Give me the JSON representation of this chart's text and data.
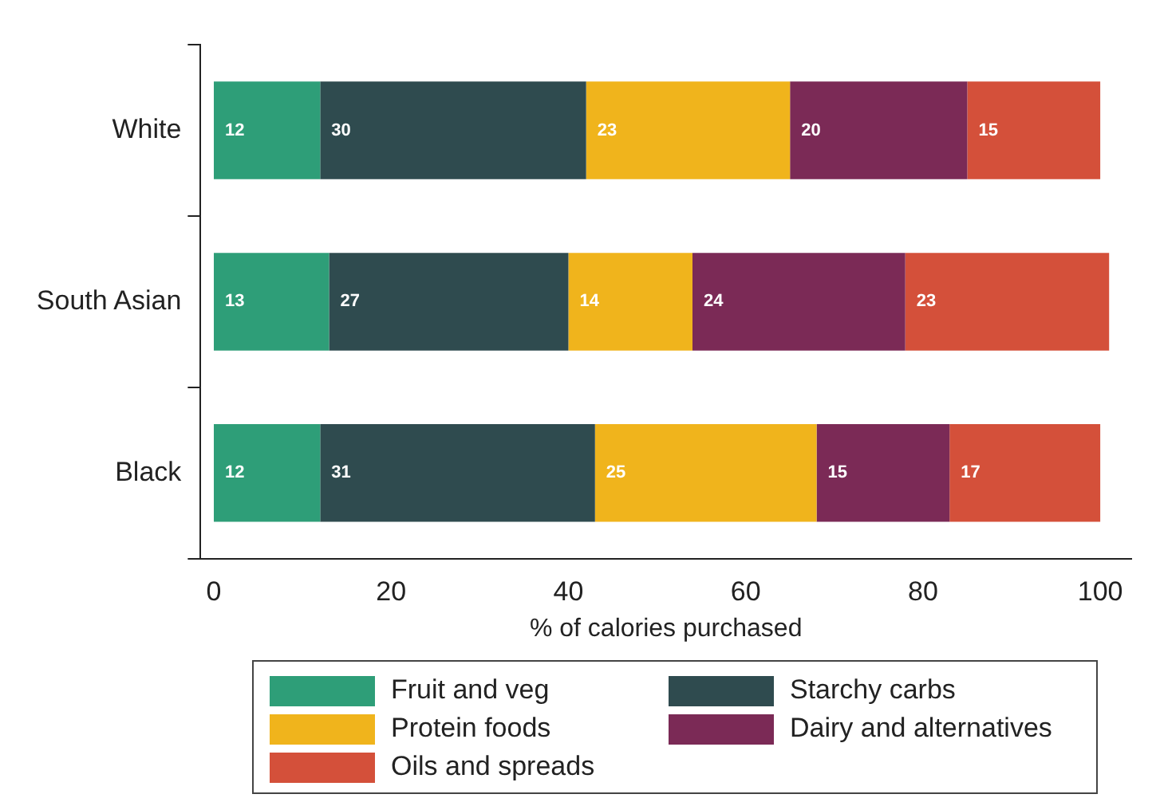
{
  "chart_data": {
    "type": "bar",
    "orientation": "horizontal",
    "stacked": true,
    "xlabel": "% of calories purchased",
    "categories": [
      "White",
      "South Asian",
      "Black"
    ],
    "series": [
      {
        "name": "Fruit and veg",
        "color": "#2e9e78",
        "values": [
          12,
          13,
          12
        ]
      },
      {
        "name": "Starchy carbs",
        "color": "#2f4b4f",
        "values": [
          30,
          27,
          31
        ]
      },
      {
        "name": "Protein foods",
        "color": "#f0b41c",
        "values": [
          23,
          14,
          25
        ]
      },
      {
        "name": "Dairy and alternatives",
        "color": "#7b2a56",
        "values": [
          20,
          24,
          15
        ]
      },
      {
        "name": "Oils and spreads",
        "color": "#d4503a",
        "values": [
          15,
          23,
          17
        ]
      }
    ],
    "xlim": [
      -1.5,
      103.5
    ],
    "xticks": [
      0,
      20,
      40,
      60,
      80,
      100
    ],
    "grid": false,
    "legend": "bottom",
    "data_labels": true
  }
}
